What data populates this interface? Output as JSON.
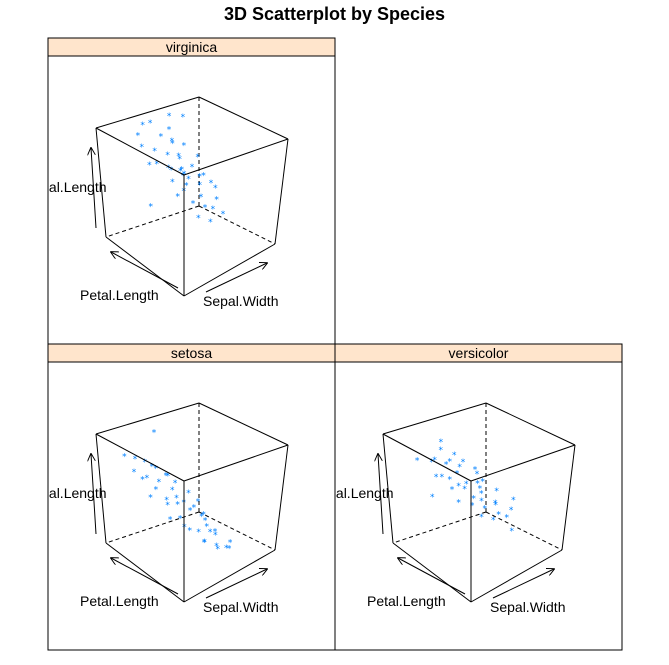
{
  "title": "3D Scatterplot by Species",
  "colors": {
    "point": "#0080ff",
    "strip": "#ffe5cc",
    "frame": "#000000"
  },
  "chart_data": {
    "type": "scatter",
    "title": "3D Scatterplot by Species",
    "axes": [
      "Sepal.Length",
      "Petal.Length",
      "Sepal.Width"
    ],
    "axis_labels": {
      "vertical": "Sepal.Length",
      "left": "Petal.Length",
      "right": "Sepal.Width"
    },
    "panels": [
      {
        "name": "virginica",
        "points": [
          [
            0.55,
            0.03,
            0.93
          ],
          [
            0.37,
            0.06,
            0.95
          ],
          [
            0.68,
            0.09,
            0.97
          ],
          [
            0.28,
            0.13,
            0.94
          ],
          [
            0.78,
            0.15,
            0.92
          ],
          [
            0.47,
            0.18,
            0.9
          ],
          [
            0.59,
            0.22,
            0.88
          ],
          [
            0.82,
            0.25,
            0.86
          ],
          [
            0.52,
            0.28,
            0.84
          ],
          [
            0.73,
            0.31,
            0.82
          ],
          [
            0.44,
            0.34,
            0.8
          ],
          [
            0.64,
            0.37,
            0.78
          ],
          [
            0.86,
            0.4,
            0.76
          ],
          [
            0.56,
            0.43,
            0.74
          ],
          [
            0.39,
            0.46,
            0.72
          ],
          [
            0.7,
            0.49,
            0.7
          ],
          [
            0.5,
            0.52,
            0.68
          ],
          [
            0.61,
            0.55,
            0.66
          ],
          [
            0.76,
            0.58,
            0.64
          ],
          [
            0.45,
            0.61,
            0.62
          ],
          [
            0.66,
            0.64,
            0.6
          ],
          [
            0.54,
            0.67,
            0.58
          ],
          [
            0.8,
            0.7,
            0.56
          ],
          [
            0.42,
            0.73,
            0.54
          ],
          [
            0.6,
            0.76,
            0.52
          ],
          [
            0.71,
            0.79,
            0.5
          ],
          [
            0.48,
            0.82,
            0.48
          ],
          [
            0.63,
            0.85,
            0.46
          ],
          [
            0.57,
            0.88,
            0.44
          ],
          [
            0.75,
            0.91,
            0.42
          ],
          [
            0.51,
            0.94,
            0.4
          ],
          [
            0.67,
            0.97,
            0.38
          ],
          [
            0.58,
            0.5,
            0.62
          ],
          [
            0.69,
            0.44,
            0.7
          ],
          [
            0.46,
            0.57,
            0.6
          ],
          [
            0.62,
            0.62,
            0.64
          ],
          [
            0.53,
            0.38,
            0.74
          ],
          [
            0.72,
            0.68,
            0.58
          ],
          [
            0.49,
            0.25,
            0.8
          ],
          [
            0.65,
            0.55,
            0.7
          ],
          [
            0.74,
            0.35,
            0.72
          ],
          [
            0.41,
            0.66,
            0.56
          ],
          [
            0.57,
            0.47,
            0.66
          ],
          [
            0.6,
            0.1,
            0.2
          ]
        ]
      },
      {
        "name": "setosa",
        "points": [
          [
            0.5,
            0.97,
            0.15
          ],
          [
            0.58,
            0.94,
            0.18
          ],
          [
            0.42,
            0.91,
            0.1
          ],
          [
            0.66,
            0.88,
            0.22
          ],
          [
            0.36,
            0.85,
            0.12
          ],
          [
            0.55,
            0.82,
            0.26
          ],
          [
            0.47,
            0.79,
            0.2
          ],
          [
            0.72,
            0.76,
            0.3
          ],
          [
            0.6,
            0.73,
            0.24
          ],
          [
            0.4,
            0.7,
            0.18
          ],
          [
            0.52,
            0.67,
            0.34
          ],
          [
            0.68,
            0.64,
            0.28
          ],
          [
            0.45,
            0.61,
            0.32
          ],
          [
            0.57,
            0.58,
            0.38
          ],
          [
            0.76,
            0.55,
            0.34
          ],
          [
            0.48,
            0.52,
            0.36
          ],
          [
            0.63,
            0.49,
            0.42
          ],
          [
            0.54,
            0.46,
            0.4
          ],
          [
            0.7,
            0.43,
            0.46
          ],
          [
            0.44,
            0.4,
            0.44
          ],
          [
            0.59,
            0.37,
            0.5
          ],
          [
            0.8,
            0.34,
            0.48
          ],
          [
            0.51,
            0.31,
            0.52
          ],
          [
            0.66,
            0.28,
            0.56
          ],
          [
            0.56,
            0.25,
            0.58
          ],
          [
            0.74,
            0.22,
            0.6
          ],
          [
            0.62,
            0.19,
            0.64
          ],
          [
            0.83,
            0.16,
            0.66
          ],
          [
            0.69,
            0.13,
            0.7
          ],
          [
            0.77,
            0.1,
            0.74
          ],
          [
            0.86,
            0.07,
            0.78
          ],
          [
            0.64,
            0.85,
            0.2
          ],
          [
            0.53,
            0.75,
            0.28
          ],
          [
            0.71,
            0.62,
            0.36
          ],
          [
            0.46,
            0.55,
            0.42
          ],
          [
            0.61,
            0.45,
            0.46
          ],
          [
            0.75,
            0.35,
            0.54
          ],
          [
            0.58,
            0.3,
            0.6
          ],
          [
            0.82,
            0.26,
            0.62
          ],
          [
            0.67,
            0.2,
            0.68
          ],
          [
            0.49,
            0.68,
            0.3
          ],
          [
            0.73,
            0.48,
            0.44
          ],
          [
            0.55,
            0.92,
            0.14
          ],
          [
            0.5,
            0.02,
            0.88
          ]
        ]
      },
      {
        "name": "versicolor",
        "points": [
          [
            0.57,
            0.97,
            0.45
          ],
          [
            0.49,
            0.93,
            0.48
          ],
          [
            0.65,
            0.89,
            0.42
          ],
          [
            0.4,
            0.85,
            0.52
          ],
          [
            0.71,
            0.81,
            0.44
          ],
          [
            0.53,
            0.77,
            0.5
          ],
          [
            0.61,
            0.73,
            0.46
          ],
          [
            0.45,
            0.69,
            0.56
          ],
          [
            0.68,
            0.65,
            0.48
          ],
          [
            0.55,
            0.61,
            0.54
          ],
          [
            0.76,
            0.57,
            0.5
          ],
          [
            0.47,
            0.53,
            0.6
          ],
          [
            0.63,
            0.49,
            0.56
          ],
          [
            0.58,
            0.45,
            0.58
          ],
          [
            0.7,
            0.41,
            0.55
          ],
          [
            0.42,
            0.37,
            0.64
          ],
          [
            0.66,
            0.33,
            0.6
          ],
          [
            0.52,
            0.29,
            0.66
          ],
          [
            0.74,
            0.25,
            0.62
          ],
          [
            0.6,
            0.21,
            0.68
          ],
          [
            0.48,
            0.17,
            0.72
          ],
          [
            0.69,
            0.13,
            0.7
          ],
          [
            0.56,
            0.09,
            0.76
          ],
          [
            0.79,
            0.06,
            0.72
          ],
          [
            0.51,
            0.03,
            0.8
          ],
          [
            0.62,
            0.7,
            0.52
          ],
          [
            0.54,
            0.58,
            0.57
          ],
          [
            0.67,
            0.46,
            0.59
          ],
          [
            0.44,
            0.42,
            0.62
          ],
          [
            0.59,
            0.34,
            0.64
          ],
          [
            0.72,
            0.3,
            0.63
          ],
          [
            0.5,
            0.5,
            0.58
          ],
          [
            0.64,
            0.62,
            0.52
          ],
          [
            0.57,
            0.22,
            0.7
          ],
          [
            0.46,
            0.26,
            0.68
          ],
          [
            0.7,
            0.18,
            0.74
          ],
          [
            0.6,
            0.9,
            0.46
          ],
          [
            0.55,
            0.8,
            0.5
          ],
          [
            0.66,
            0.1,
            0.36
          ],
          [
            0.5,
            0.95,
            0.3
          ]
        ]
      }
    ]
  }
}
